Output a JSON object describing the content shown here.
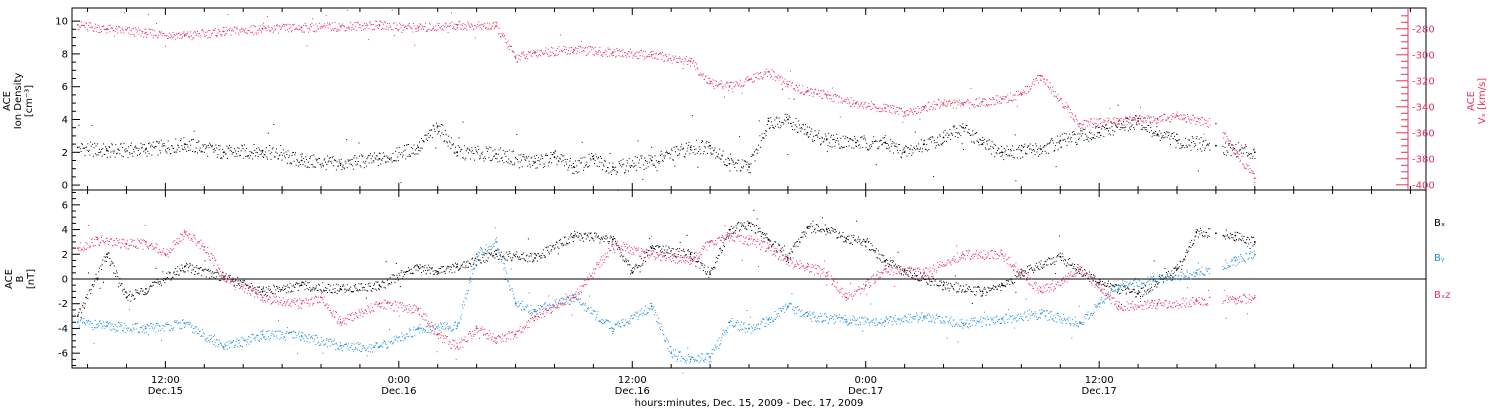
{
  "chart_data": [
    {
      "type": "scatter",
      "panel": "top",
      "ylabel_left": [
        "ACE",
        "Ion Density",
        "[cm⁻³]"
      ],
      "ylabel_right": [
        "ACE",
        "Vₓ [km/s]"
      ],
      "ylim_left": [
        -0.3,
        10.8
      ],
      "ylim_right": [
        -404,
        -264
      ],
      "yticks_left": [
        0,
        2,
        4,
        6,
        8,
        10
      ],
      "yticks_right": [
        -400,
        -380,
        -360,
        -340,
        -320,
        -300,
        -280
      ],
      "series": [
        {
          "axis": "left",
          "color": "#000000",
          "x": [
            7.5,
            9,
            11,
            13,
            15,
            17,
            19,
            21,
            23,
            25,
            26,
            27,
            29,
            31,
            32,
            33,
            34,
            35,
            37,
            39,
            40,
            41,
            42,
            43,
            44,
            45,
            46,
            47.5,
            49,
            50,
            51,
            52,
            53,
            54,
            55,
            56,
            57,
            58,
            60,
            62,
            63,
            64,
            66,
            68
          ],
          "y": [
            2.3,
            2.1,
            2.2,
            2.5,
            2.0,
            2.1,
            1.5,
            1.3,
            1.6,
            2.3,
            3.6,
            2.0,
            1.9,
            1.4,
            1.7,
            1.1,
            1.6,
            1.1,
            1.5,
            2.3,
            2.4,
            1.3,
            1.1,
            3.9,
            4.0,
            3.2,
            2.8,
            2.6,
            2.6,
            2.0,
            2.5,
            2.9,
            3.5,
            2.5,
            2.0,
            2.1,
            2.2,
            2.7,
            3.2,
            3.9,
            3.1,
            2.7,
            2.4,
            2.0
          ]
        },
        {
          "axis": "right",
          "color": "#e8325f",
          "x": [
            7.5,
            9,
            11,
            13,
            15,
            17,
            19,
            21,
            23,
            25,
            27,
            29,
            30,
            31,
            33,
            35,
            37,
            39,
            40,
            41,
            42,
            43,
            44,
            45,
            46,
            47.5,
            49,
            50,
            51,
            52,
            53,
            54,
            55,
            56,
            57,
            59,
            61,
            63,
            64,
            66,
            68
          ],
          "y": [
            -277,
            -280,
            -283,
            -285,
            -282,
            -280,
            -279,
            -278,
            -277,
            -279,
            -277,
            -278,
            -302,
            -298,
            -296,
            -298,
            -300,
            -305,
            -322,
            -324,
            -319,
            -313,
            -323,
            -328,
            -331,
            -337,
            -341,
            -344,
            -340,
            -337,
            -338,
            -336,
            -334,
            -330,
            -316,
            -353,
            -351,
            -349,
            -347,
            -353,
            -395
          ]
        }
      ]
    },
    {
      "type": "line",
      "panel": "bottom",
      "ylabel_left": [
        "ACE",
        "B",
        "[nT]"
      ],
      "ylim": [
        -7.2,
        7.2
      ],
      "yticks": [
        -6,
        -4,
        -2,
        0,
        2,
        4,
        6
      ],
      "zero_line": true,
      "series": [
        {
          "name": "Bₓ",
          "color": "#000000",
          "x": [
            7.5,
            9,
            10,
            11,
            13,
            15,
            17,
            19,
            21,
            23,
            25,
            26,
            27,
            29,
            31,
            33,
            35,
            36,
            37,
            39,
            40,
            41,
            42,
            43,
            44,
            45,
            46,
            47,
            48,
            49,
            50,
            52,
            54,
            55,
            56,
            58,
            60,
            62,
            64,
            65,
            66,
            67,
            68
          ],
          "y": [
            -3.0,
            2.0,
            -1.5,
            -0.8,
            1.0,
            0.2,
            -1.0,
            -0.5,
            -0.8,
            -0.5,
            1.0,
            0.6,
            1.0,
            2.0,
            1.7,
            3.5,
            3.2,
            0.5,
            2.5,
            2.0,
            0.4,
            4.0,
            4.5,
            3.2,
            1.7,
            4.2,
            4.0,
            3.3,
            3.0,
            1.5,
            0.7,
            -0.5,
            -1.0,
            -0.5,
            0.5,
            1.8,
            -0.3,
            -1.2,
            0.8,
            3.8,
            3.7,
            3.5,
            3.0
          ]
        },
        {
          "name": "Bᵧ",
          "color": "#1f8de0",
          "x": [
            7.5,
            9,
            11,
            13,
            15,
            17,
            19,
            21,
            23,
            25,
            27,
            28,
            29,
            30,
            31,
            33,
            35,
            37,
            38,
            39,
            40,
            41,
            42,
            43,
            44,
            45,
            47,
            49,
            51,
            53,
            55,
            57,
            59,
            60,
            61,
            63,
            65,
            67,
            68
          ],
          "y": [
            -3.5,
            -3.8,
            -4.0,
            -3.6,
            -5.5,
            -4.5,
            -4.6,
            -5.4,
            -5.5,
            -4.0,
            -3.8,
            2.0,
            3.0,
            -2.0,
            -2.5,
            -1.5,
            -4.0,
            -2.2,
            -6.0,
            -6.5,
            -6.3,
            -3.5,
            -4.0,
            -3.3,
            -2.2,
            -3.0,
            -3.3,
            -3.4,
            -3.0,
            -3.6,
            -3.2,
            -2.8,
            -3.5,
            -2.0,
            -0.5,
            0.0,
            0.5,
            1.5,
            2.0
          ]
        },
        {
          "name": "Bₓz",
          "color": "#e8325f",
          "x": [
            7.5,
            8.5,
            10,
            11,
            12,
            13,
            14,
            15,
            17,
            19,
            20,
            21,
            23,
            25,
            26,
            27,
            28,
            29,
            30,
            31,
            33,
            35,
            37,
            39,
            40,
            41,
            42,
            43,
            44,
            45,
            46,
            47,
            48,
            49,
            51,
            53,
            55,
            57,
            59,
            61,
            63,
            65,
            67,
            68
          ],
          "y": [
            2.5,
            3.2,
            2.8,
            3.0,
            2.0,
            3.8,
            2.6,
            0.2,
            -1.5,
            -2.0,
            -1.5,
            -3.5,
            -2.0,
            -2.4,
            -4.5,
            -5.5,
            -4.0,
            -4.8,
            -4.5,
            -3.0,
            -1.5,
            2.8,
            2.0,
            1.5,
            3.0,
            3.5,
            3.2,
            2.5,
            1.5,
            1.0,
            0.5,
            -1.5,
            -0.5,
            0.8,
            0.5,
            2.0,
            2.0,
            -1.0,
            0.8,
            -2.2,
            -2.0,
            -1.8,
            -1.6,
            -1.5
          ]
        }
      ]
    }
  ],
  "x_axis": {
    "range_hours": [
      7.2,
      76.8
    ],
    "ticks": [
      {
        "hour": 12,
        "time": "12:00",
        "date": "Dec.15"
      },
      {
        "hour": 24,
        "time": "0:00",
        "date": "Dec.16"
      },
      {
        "hour": 36,
        "time": "12:00",
        "date": "Dec.16"
      },
      {
        "hour": 48,
        "time": "0:00",
        "date": "Dec.17"
      },
      {
        "hour": 60,
        "time": "12:00",
        "date": "Dec.17"
      }
    ],
    "label": "hours:minutes, Dec. 15, 2009 - Dec. 17, 2009"
  },
  "legend": [
    "Bₓ",
    "Bᵧ",
    "Bₓz"
  ],
  "colors": {
    "black": "#000000",
    "blue": "#1f8de0",
    "pink": "#e8325f"
  }
}
